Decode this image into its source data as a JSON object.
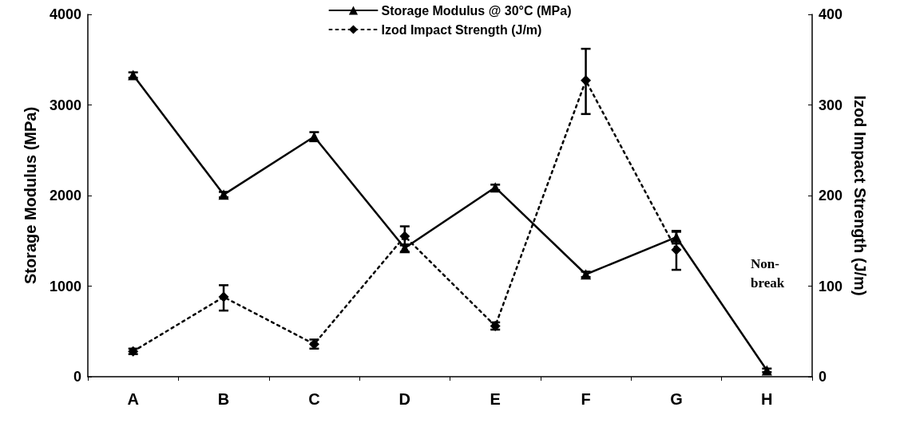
{
  "chart_data": {
    "type": "line",
    "ylabel": "Storage Modulus (MPa)",
    "y2label": "Izod Impact Strength (J/m)",
    "categories": [
      "A",
      "B",
      "C",
      "D",
      "E",
      "F",
      "G",
      "H"
    ],
    "series": [
      {
        "name": "Storage Modulus @ 30°C (MPa)",
        "color": "#000000",
        "values": [
          3330,
          2010,
          2650,
          1420,
          2090,
          1130,
          1540,
          70
        ],
        "errors": [
          30,
          30,
          50,
          40,
          30,
          30,
          70,
          20
        ],
        "marker": "triangle",
        "line_style": "solid"
      },
      {
        "name": "Izod Impact Strength (J/m)",
        "color": "#000000",
        "values": [
          28,
          88,
          36,
          155,
          56,
          327,
          140,
          null
        ],
        "errors": [
          3,
          [
            73,
            101
          ],
          5,
          [
            145,
            166
          ],
          4,
          [
            290,
            362
          ],
          [
            118,
            160
          ],
          null
        ],
        "marker": "diamond",
        "line_style": "dotted",
        "axis": "y2"
      }
    ],
    "ylim": [
      0,
      4000
    ],
    "yticks": [
      0,
      1000,
      2000,
      3000,
      4000
    ],
    "y2lim": [
      0,
      400
    ],
    "y2ticks": [
      0,
      100,
      200,
      300,
      400
    ],
    "annotations": [
      "Non-break"
    ],
    "legend": "top",
    "grid": false
  }
}
